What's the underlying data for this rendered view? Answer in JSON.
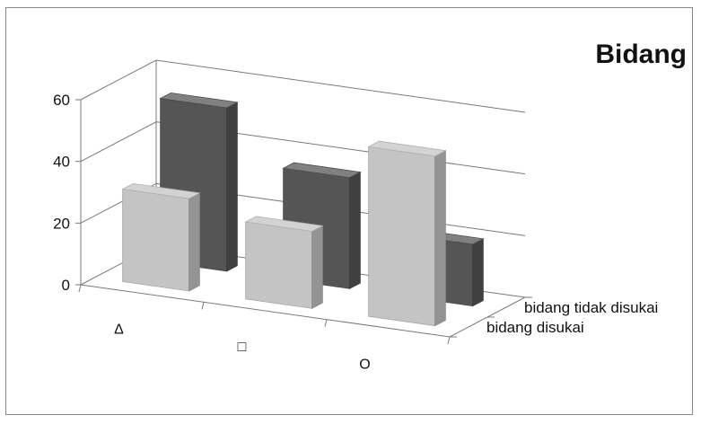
{
  "chart_data": {
    "type": "bar",
    "title": "Bidang",
    "categories": [
      "Δ",
      "□",
      "O"
    ],
    "series": [
      {
        "name": "bidang disukai",
        "values": [
          30,
          25,
          55
        ]
      },
      {
        "name": "bidang tidak disukai",
        "values": [
          53,
          36,
          20
        ]
      }
    ],
    "ylim": [
      0,
      60
    ],
    "yticks": [
      0,
      20,
      40,
      60
    ],
    "grid": true,
    "style": "3d-column",
    "colors": {
      "bidang disukai": "#c4c4c4",
      "bidang tidak disukai": "#555555",
      "border": "#888888"
    }
  }
}
